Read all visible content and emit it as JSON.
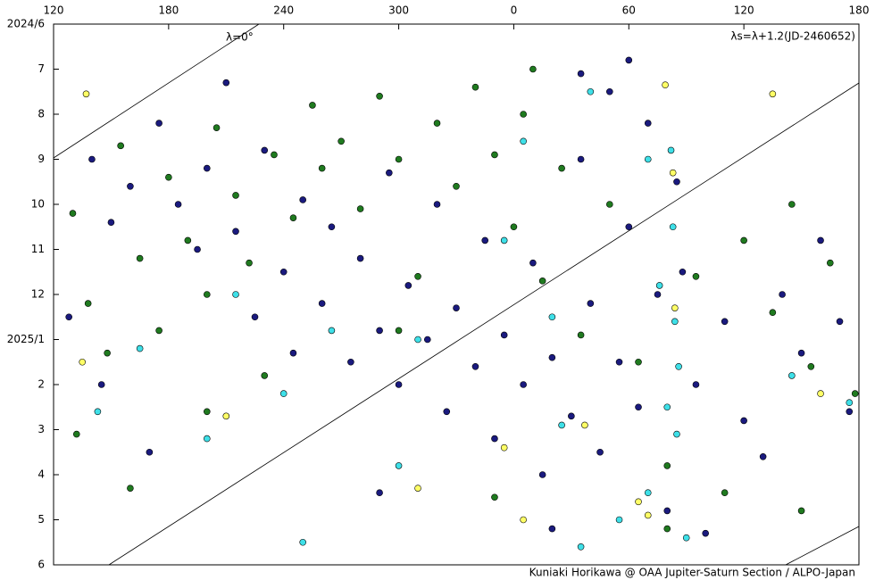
{
  "chart_data": {
    "type": "scatter",
    "annotations": {
      "lambda_zero": "λ=0°",
      "formula": "λs=λ+1.2(JD-2460652)",
      "credit": "Kuniaki Horikawa @ OAA Jupiter-Saturn Section / ALPO-Japan"
    },
    "xlim": [
      120,
      540
    ],
    "xticks": [
      120,
      180,
      240,
      300,
      {
        "value": 360,
        "label": "0"
      },
      {
        "value": 420,
        "label": "60"
      },
      {
        "value": 480,
        "label": "120"
      },
      {
        "value": 540,
        "label": "180"
      }
    ],
    "ylim": [
      0,
      12
    ],
    "yticks": [
      {
        "value": 0,
        "label": "2024/6"
      },
      {
        "value": 1,
        "label": "7"
      },
      {
        "value": 2,
        "label": "8"
      },
      {
        "value": 3,
        "label": "9"
      },
      {
        "value": 4,
        "label": "10"
      },
      {
        "value": 5,
        "label": "11"
      },
      {
        "value": 6,
        "label": "12"
      },
      {
        "value": 7,
        "label": "2025/1"
      },
      {
        "value": 8,
        "label": "2"
      },
      {
        "value": 9,
        "label": "3"
      },
      {
        "value": 10,
        "label": "4"
      },
      {
        "value": 11,
        "label": "5"
      },
      {
        "value": 12,
        "label": "6"
      }
    ],
    "series": [
      {
        "color": "#1a1a7e",
        "x": [
          140,
          150,
          160,
          175,
          185,
          195,
          200,
          210,
          215,
          225,
          230,
          240,
          245,
          250,
          260,
          265,
          275,
          280,
          290,
          295,
          300,
          305,
          315,
          320,
          325,
          330,
          340,
          345,
          350,
          355,
          365,
          370,
          375,
          380,
          390,
          395,
          400,
          405,
          410,
          415,
          420,
          425,
          430,
          435,
          440,
          445,
          448,
          455,
          460,
          470,
          480,
          490,
          500,
          510,
          520,
          530,
          535,
          128,
          145,
          170,
          290,
          380,
          395,
          420
        ],
        "values": [
          3.0,
          4.4,
          3.6,
          2.2,
          4.0,
          5.0,
          3.2,
          1.3,
          4.6,
          6.5,
          2.8,
          5.5,
          7.3,
          3.9,
          6.2,
          4.5,
          7.5,
          5.2,
          6.8,
          3.3,
          8.0,
          5.8,
          7.0,
          4.0,
          8.6,
          6.3,
          7.6,
          4.8,
          9.2,
          6.9,
          8.0,
          5.3,
          10.0,
          7.4,
          8.7,
          3.0,
          6.2,
          9.5,
          1.5,
          7.5,
          4.5,
          8.5,
          2.2,
          6.0,
          10.8,
          3.5,
          5.5,
          8.0,
          11.3,
          6.6,
          8.8,
          9.6,
          6.0,
          7.3,
          4.8,
          6.6,
          8.6,
          6.5,
          8.0,
          9.5,
          10.4,
          11.2,
          1.1,
          0.8
        ]
      },
      {
        "color": "#1f7a1f",
        "x": [
          130,
          138,
          148,
          155,
          165,
          175,
          180,
          190,
          200,
          205,
          215,
          222,
          235,
          245,
          255,
          260,
          270,
          280,
          290,
          300,
          310,
          320,
          330,
          340,
          350,
          360,
          365,
          375,
          385,
          395,
          410,
          425,
          440,
          455,
          470,
          480,
          495,
          505,
          515,
          525,
          538,
          132,
          160,
          200,
          300,
          350,
          440,
          510,
          230,
          370
        ],
        "values": [
          4.2,
          6.2,
          7.3,
          2.7,
          5.2,
          6.8,
          3.4,
          4.8,
          6.0,
          2.3,
          3.8,
          5.3,
          2.9,
          4.3,
          1.8,
          3.2,
          2.6,
          4.1,
          1.6,
          3.0,
          5.6,
          2.2,
          3.6,
          1.4,
          2.9,
          4.5,
          2.0,
          5.7,
          3.2,
          6.9,
          4.0,
          7.5,
          9.8,
          5.6,
          10.4,
          4.8,
          6.4,
          4.0,
          7.6,
          5.3,
          8.2,
          9.1,
          10.3,
          8.6,
          6.8,
          10.5,
          11.2,
          10.8,
          7.8,
          1.0
        ]
      },
      {
        "color": "#3ee0e8",
        "x": [
          143,
          165,
          200,
          215,
          240,
          265,
          300,
          310,
          355,
          365,
          380,
          385,
          400,
          415,
          430,
          436,
          440,
          442,
          443,
          444,
          445,
          446,
          430,
          450,
          505,
          535,
          250,
          395
        ],
        "values": [
          8.6,
          7.2,
          9.2,
          6.0,
          8.2,
          6.8,
          9.8,
          7.0,
          4.8,
          2.6,
          6.5,
          8.9,
          1.5,
          11.0,
          3.0,
          5.8,
          8.5,
          2.8,
          4.5,
          6.6,
          9.1,
          7.6,
          10.4,
          11.4,
          7.8,
          8.4,
          11.5,
          11.6
        ]
      },
      {
        "color": "#ffff66",
        "x": [
          137,
          495,
          439,
          443,
          444,
          210,
          310,
          355,
          365,
          397,
          425,
          430,
          520,
          135
        ],
        "values": [
          1.55,
          1.55,
          1.35,
          3.3,
          6.3,
          8.7,
          10.3,
          9.4,
          11.0,
          8.9,
          10.6,
          10.9,
          8.2,
          7.5
        ]
      }
    ]
  }
}
